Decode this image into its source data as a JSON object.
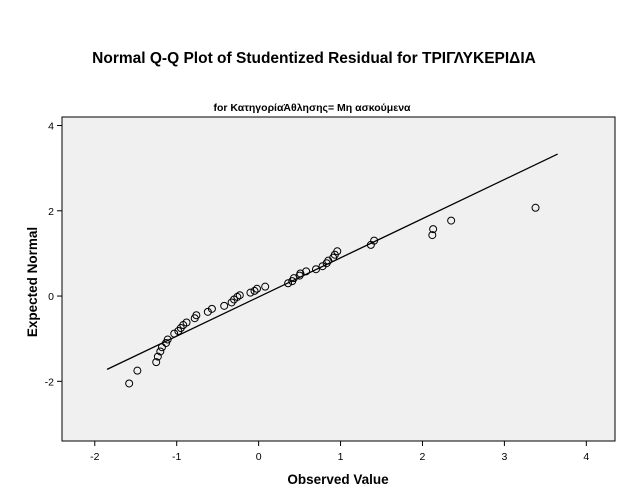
{
  "chart_data": {
    "type": "scatter",
    "title": "Normal Q-Q Plot of Studentized Residual for ΤΡΙΓΛΥΚΕΡΙΔΙΑ",
    "subtitle": "for ΚατηγορίαΆθλησης= Μη ασκούμενα",
    "xlabel": "Observed Value",
    "ylabel": "Expected Normal",
    "xlim": [
      -2.4,
      4.35
    ],
    "ylim": [
      -3.4,
      4.2
    ],
    "xticks": [
      -2,
      -1,
      0,
      1,
      2,
      3,
      4
    ],
    "yticks": [
      -2,
      0,
      2,
      4
    ],
    "reference_line": {
      "x": [
        -1.85,
        3.65
      ],
      "y": [
        -1.72,
        3.33
      ]
    },
    "points": [
      {
        "x": -1.58,
        "y": -2.05
      },
      {
        "x": -1.48,
        "y": -1.75
      },
      {
        "x": -1.25,
        "y": -1.55
      },
      {
        "x": -1.23,
        "y": -1.42
      },
      {
        "x": -1.2,
        "y": -1.3
      },
      {
        "x": -1.18,
        "y": -1.2
      },
      {
        "x": -1.13,
        "y": -1.1
      },
      {
        "x": -1.11,
        "y": -1.02
      },
      {
        "x": -1.03,
        "y": -0.88
      },
      {
        "x": -0.98,
        "y": -0.82
      },
      {
        "x": -0.95,
        "y": -0.75
      },
      {
        "x": -0.92,
        "y": -0.68
      },
      {
        "x": -0.88,
        "y": -0.62
      },
      {
        "x": -0.78,
        "y": -0.52
      },
      {
        "x": -0.76,
        "y": -0.45
      },
      {
        "x": -0.62,
        "y": -0.37
      },
      {
        "x": -0.57,
        "y": -0.3
      },
      {
        "x": -0.42,
        "y": -0.23
      },
      {
        "x": -0.33,
        "y": -0.15
      },
      {
        "x": -0.3,
        "y": -0.08
      },
      {
        "x": -0.26,
        "y": -0.02
      },
      {
        "x": -0.23,
        "y": 0.02
      },
      {
        "x": -0.1,
        "y": 0.08
      },
      {
        "x": -0.05,
        "y": 0.12
      },
      {
        "x": -0.02,
        "y": 0.17
      },
      {
        "x": 0.08,
        "y": 0.22
      },
      {
        "x": 0.36,
        "y": 0.3
      },
      {
        "x": 0.41,
        "y": 0.35
      },
      {
        "x": 0.43,
        "y": 0.42
      },
      {
        "x": 0.5,
        "y": 0.48
      },
      {
        "x": 0.51,
        "y": 0.53
      },
      {
        "x": 0.58,
        "y": 0.58
      },
      {
        "x": 0.7,
        "y": 0.63
      },
      {
        "x": 0.78,
        "y": 0.7
      },
      {
        "x": 0.83,
        "y": 0.77
      },
      {
        "x": 0.85,
        "y": 0.83
      },
      {
        "x": 0.91,
        "y": 0.9
      },
      {
        "x": 0.93,
        "y": 0.97
      },
      {
        "x": 0.96,
        "y": 1.05
      },
      {
        "x": 1.37,
        "y": 1.2
      },
      {
        "x": 1.41,
        "y": 1.3
      },
      {
        "x": 2.12,
        "y": 1.43
      },
      {
        "x": 2.13,
        "y": 1.57
      },
      {
        "x": 2.35,
        "y": 1.77
      },
      {
        "x": 3.38,
        "y": 2.07
      }
    ]
  }
}
